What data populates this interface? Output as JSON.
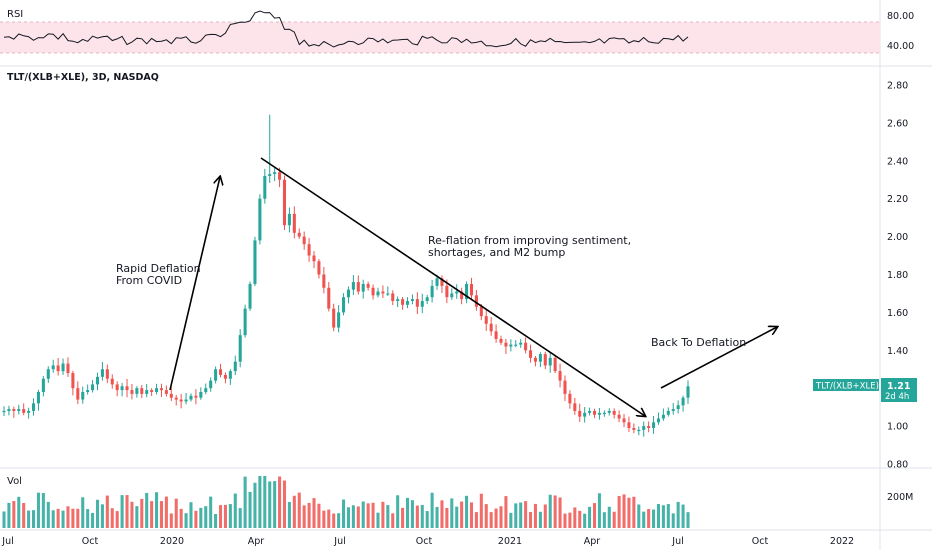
{
  "chart_data": {
    "type": "candlestick",
    "symbol": "TLT/(XLB+XLE), 3D, NASDAQ",
    "price_axis": {
      "ticks": [
        "2.80",
        "2.60",
        "2.40",
        "2.20",
        "2.00",
        "1.80",
        "1.60",
        "1.40",
        "1.20",
        "1.00",
        "0.80"
      ],
      "range": [
        0.78,
        2.88
      ]
    },
    "last_price": {
      "label": "TLT/(XLB+XLE)",
      "value": "1.21",
      "countdown": "2d 4h"
    },
    "x_axis": {
      "ticks": [
        "Jul",
        "Oct",
        "2020",
        "Apr",
        "Jul",
        "Oct",
        "2021",
        "Apr",
        "Jul",
        "Oct",
        "2022"
      ]
    },
    "rsi": {
      "label": "RSI",
      "ticks": [
        "80.00",
        "40.00"
      ],
      "band": [
        40,
        70
      ]
    },
    "volume": {
      "label": "Vol",
      "ticks": [
        "200M"
      ]
    },
    "colors": {
      "up": "#26a69a",
      "down": "#ef5350",
      "rsi_band": "#fde4ea",
      "rsi_line": "#131722"
    },
    "annotations": [
      {
        "lines": [
          "Rapid Deflation",
          "From COVID"
        ]
      },
      {
        "lines": [
          "Re-flation from improving sentiment,",
          "shortages, and M2 bump"
        ]
      },
      {
        "lines": [
          "Back To Deflation"
        ]
      }
    ],
    "series_close": [
      1.08,
      1.09,
      1.08,
      1.09,
      1.07,
      1.08,
      1.12,
      1.18,
      1.25,
      1.3,
      1.32,
      1.29,
      1.33,
      1.28,
      1.2,
      1.14,
      1.18,
      1.19,
      1.22,
      1.26,
      1.3,
      1.25,
      1.22,
      1.19,
      1.21,
      1.19,
      1.17,
      1.2,
      1.17,
      1.19,
      1.18,
      1.2,
      1.19,
      1.17,
      1.15,
      1.14,
      1.13,
      1.14,
      1.16,
      1.15,
      1.18,
      1.2,
      1.24,
      1.3,
      1.27,
      1.25,
      1.29,
      1.34,
      1.48,
      1.62,
      1.75,
      1.98,
      2.2,
      2.32,
      2.33,
      2.34,
      2.3,
      2.06,
      2.12,
      2.02,
      2.0,
      1.96,
      1.9,
      1.87,
      1.8,
      1.73,
      1.62,
      1.52,
      1.6,
      1.68,
      1.72,
      1.76,
      1.71,
      1.75,
      1.73,
      1.69,
      1.71,
      1.7,
      1.7,
      1.66,
      1.67,
      1.64,
      1.66,
      1.67,
      1.63,
      1.66,
      1.68,
      1.74,
      1.78,
      1.74,
      1.68,
      1.7,
      1.71,
      1.67,
      1.75,
      1.69,
      1.63,
      1.58,
      1.54,
      1.5,
      1.46,
      1.44,
      1.42,
      1.43,
      1.43,
      1.44,
      1.4,
      1.36,
      1.34,
      1.38,
      1.32,
      1.36,
      1.29,
      1.24,
      1.17,
      1.12,
      1.08,
      1.05,
      1.07,
      1.08,
      1.06,
      1.07,
      1.07,
      1.08,
      1.06,
      1.04,
      1.02,
      0.99,
      0.98,
      0.98,
      1.0,
      0.99,
      1.02,
      1.04,
      1.06,
      1.08,
      1.09,
      1.11,
      1.15,
      1.21
    ]
  }
}
